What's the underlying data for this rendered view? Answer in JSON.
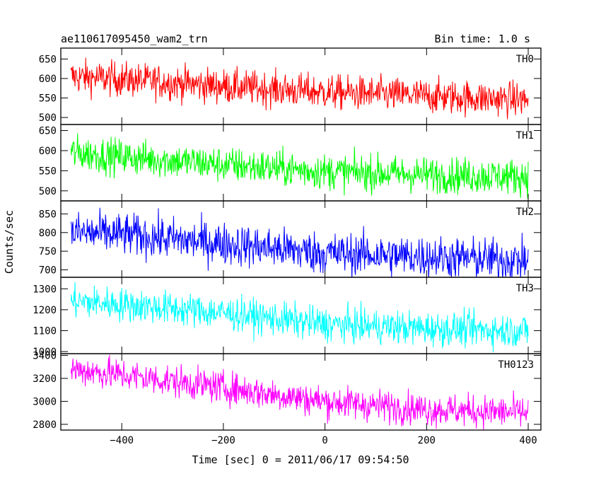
{
  "chart_data": {
    "type": "line",
    "title": "ae110617095450_wam2_trn",
    "bin_time": "Bin time: 1.0 s",
    "xlabel": "Time [sec] 0 = 2011/06/17 09:54:50",
    "ylabel": "Counts/sec",
    "xlim": [
      -520,
      425
    ],
    "x_ticks": [
      -400,
      -200,
      0,
      200,
      400
    ],
    "x_range": [
      -500,
      400
    ],
    "x_step": 1,
    "grid": false,
    "panels": [
      {
        "name": "TH0",
        "color": "#ff0000",
        "ylim": [
          482,
          678
        ],
        "y_ticks": [
          500,
          550,
          600,
          650
        ],
        "trend": {
          "x": [
            -500,
            -400,
            -200,
            0,
            200,
            400
          ],
          "y": [
            605,
            598,
            580,
            565,
            555,
            545
          ]
        },
        "noise_sd": 22
      },
      {
        "name": "TH1",
        "color": "#00ff00",
        "ylim": [
          475,
          665
        ],
        "y_ticks": [
          500,
          550,
          600,
          650
        ],
        "trend": {
          "x": [
            -500,
            -400,
            -200,
            0,
            200,
            400
          ],
          "y": [
            595,
            585,
            565,
            548,
            540,
            535
          ]
        },
        "noise_sd": 22
      },
      {
        "name": "TH2",
        "color": "#0000ff",
        "ylim": [
          680,
          885
        ],
        "y_ticks": [
          700,
          750,
          800,
          850
        ],
        "trend": {
          "x": [
            -500,
            -400,
            -200,
            0,
            200,
            400
          ],
          "y": [
            800,
            795,
            770,
            745,
            735,
            725
          ]
        },
        "noise_sd": 28
      },
      {
        "name": "TH3",
        "color": "#00ffff",
        "ylim": [
          990,
          1355
        ],
        "y_ticks": [
          1000,
          1100,
          1200,
          1300
        ],
        "trend": {
          "x": [
            -500,
            -400,
            -200,
            0,
            200,
            400
          ],
          "y": [
            1240,
            1225,
            1185,
            1130,
            1110,
            1100
          ]
        },
        "noise_sd": 40
      },
      {
        "name": "TH0123",
        "color": "#ff00ff",
        "ylim": [
          2750,
          3415
        ],
        "y_ticks": [
          2800,
          3000,
          3200,
          3400
        ],
        "trend": {
          "x": [
            -500,
            -400,
            -200,
            0,
            200,
            400
          ],
          "y": [
            3280,
            3230,
            3120,
            3000,
            2930,
            2900
          ]
        },
        "noise_sd": 70
      }
    ]
  }
}
